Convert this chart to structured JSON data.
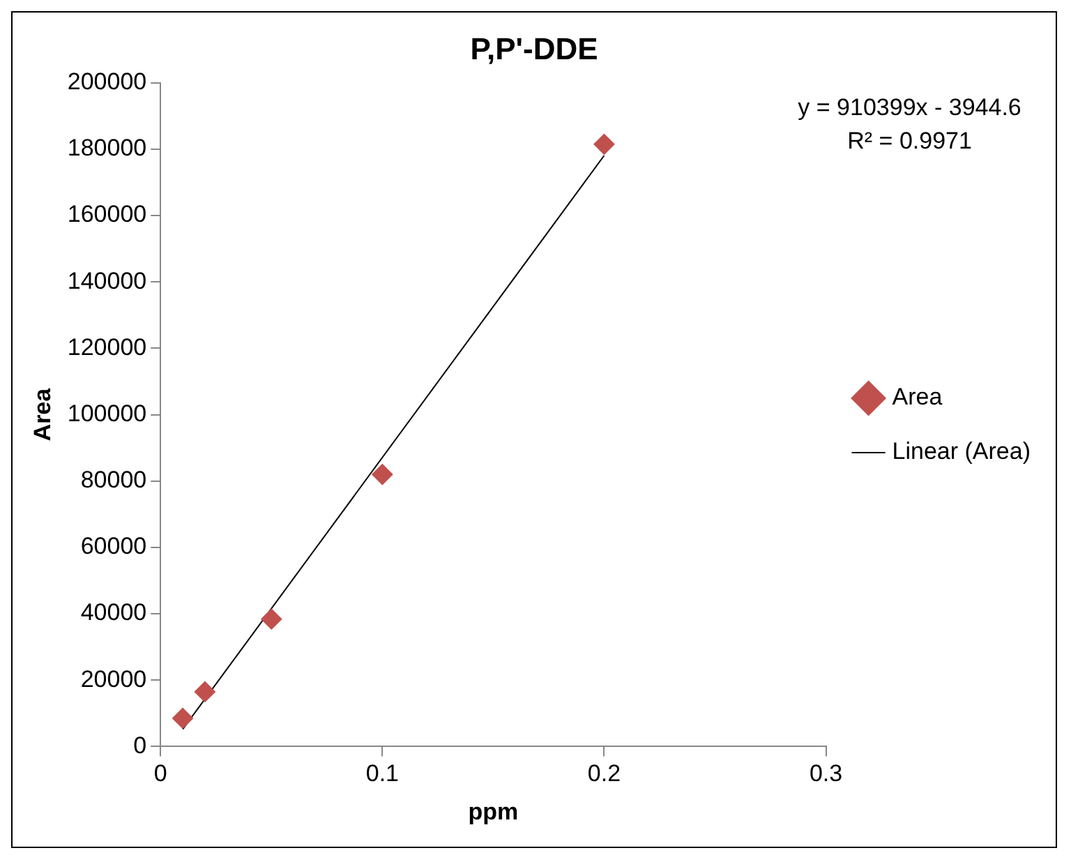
{
  "chart_data": {
    "type": "scatter",
    "title": "P,P'-DDE",
    "xlabel": "ppm",
    "ylabel": "Area",
    "annotations": [
      "y = 910399x - 3944.6",
      "R² = 0.9971"
    ],
    "series": [
      {
        "name": "Area",
        "color": "#c0504d",
        "marker": "diamond",
        "x": [
          0.01,
          0.02,
          0.05,
          0.1,
          0.2
        ],
        "values": [
          8500,
          16500,
          38400,
          82000,
          181500
        ]
      },
      {
        "name": "Linear (Area)",
        "type": "line",
        "color": "#000000",
        "marker": "none",
        "line_style": "solid",
        "x": [
          0.01,
          0.2
        ],
        "values": [
          5200,
          178100
        ]
      }
    ],
    "xlim": [
      0,
      0.3
    ],
    "xticks": [
      0,
      0.1,
      0.2,
      0.3
    ],
    "ylim": [
      0,
      200000
    ],
    "yticks": [
      0,
      20000,
      40000,
      60000,
      80000,
      100000,
      120000,
      140000,
      160000,
      180000,
      200000
    ],
    "grid": false,
    "legend": "right"
  }
}
